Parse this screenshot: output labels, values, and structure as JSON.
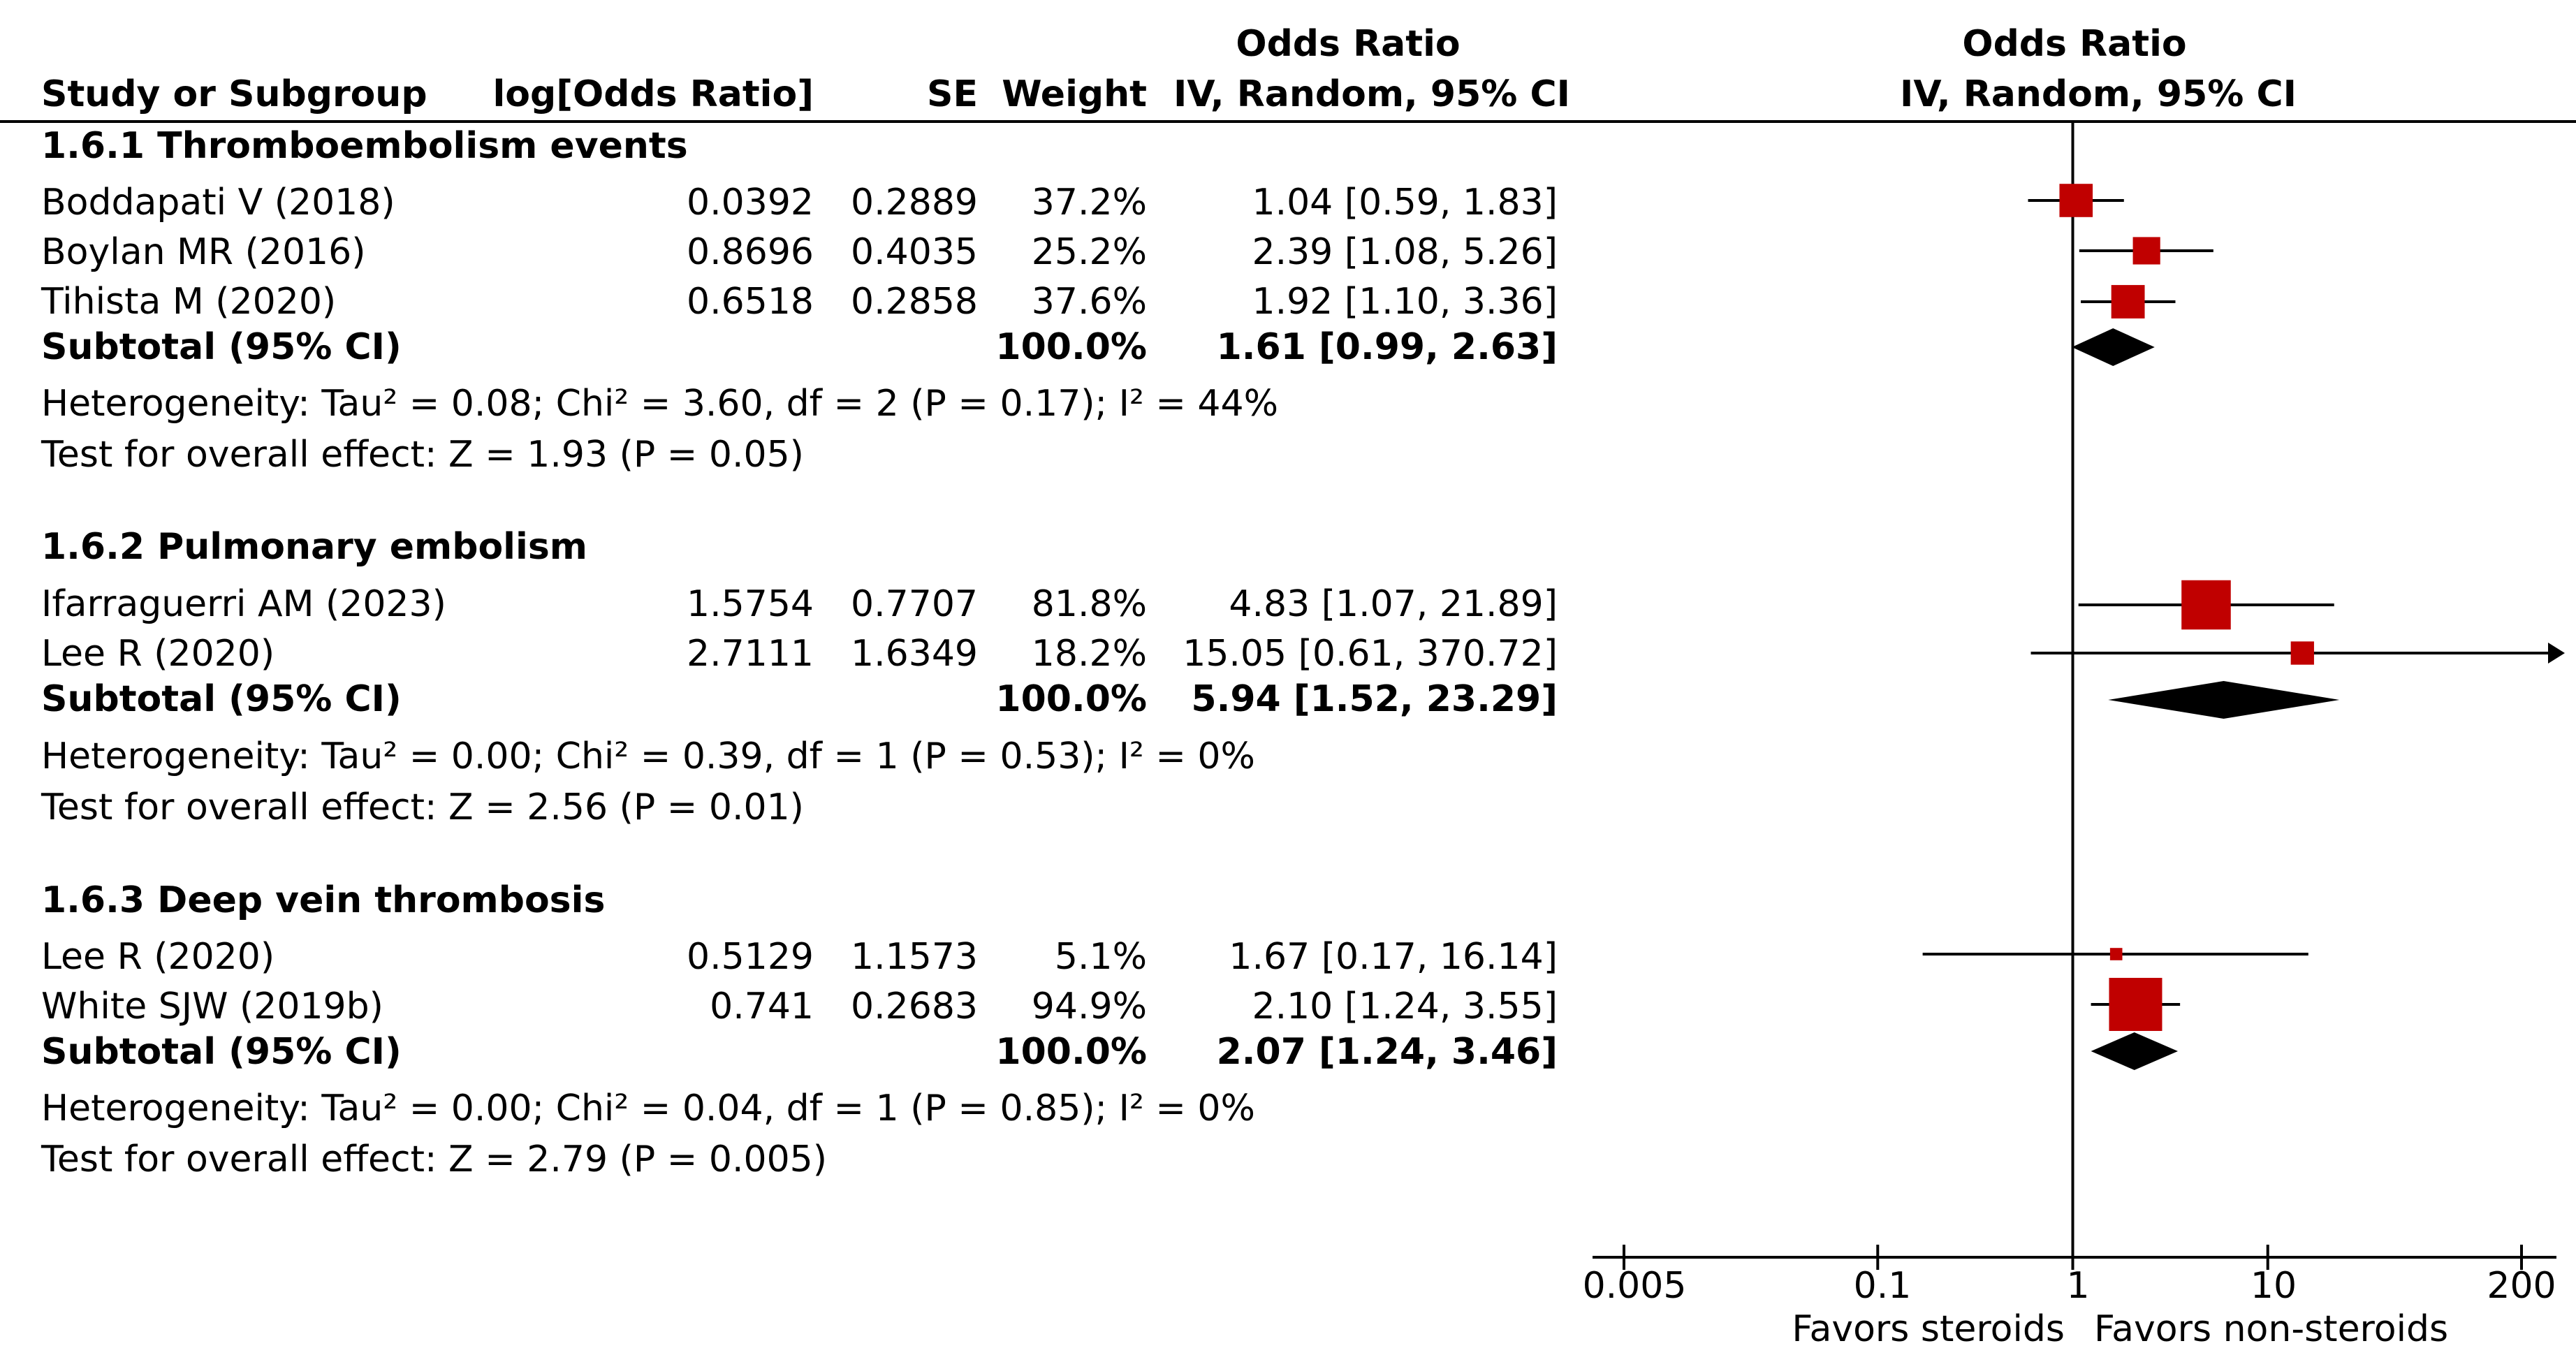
{
  "header": {
    "study": "Study or Subgroup",
    "log_or": "log[Odds Ratio]",
    "se": "SE",
    "weight": "Weight",
    "or_top": "Odds Ratio",
    "or_method": "IV, Random, 95% CI",
    "plot_top": "Odds Ratio",
    "plot_method": "IV, Random, 95% CI"
  },
  "subgroups": [
    {
      "title": "1.6.1 Thromboembolism events",
      "studies": [
        {
          "name": "Boddapati V (2018)",
          "log_or": "0.0392",
          "se": "0.2889",
          "weight": "37.2%",
          "ci": "1.04 [0.59, 1.83]"
        },
        {
          "name": "Boylan MR (2016)",
          "log_or": "0.8696",
          "se": "0.4035",
          "weight": "25.2%",
          "ci": "2.39 [1.08, 5.26]"
        },
        {
          "name": "Tihista M (2020)",
          "log_or": "0.6518",
          "se": "0.2858",
          "weight": "37.6%",
          "ci": "1.92 [1.10, 3.36]"
        }
      ],
      "subtotal": {
        "label": "Subtotal (95% CI)",
        "weight": "100.0%",
        "ci": "1.61 [0.99, 2.63]"
      },
      "heterogeneity": "Heterogeneity: Tau² = 0.08; Chi² = 3.60, df = 2 (P = 0.17); I² = 44%",
      "overall": "Test for overall effect: Z = 1.93 (P = 0.05)"
    },
    {
      "title": "1.6.2 Pulmonary embolism",
      "studies": [
        {
          "name": "Ifarraguerri AM (2023)",
          "log_or": "1.5754",
          "se": "0.7707",
          "weight": "81.8%",
          "ci": "4.83 [1.07, 21.89]"
        },
        {
          "name": "Lee R (2020)",
          "log_or": "2.7111",
          "se": "1.6349",
          "weight": "18.2%",
          "ci": "15.05 [0.61, 370.72]"
        }
      ],
      "subtotal": {
        "label": "Subtotal (95% CI)",
        "weight": "100.0%",
        "ci": "5.94 [1.52, 23.29]"
      },
      "heterogeneity": "Heterogeneity: Tau² = 0.00; Chi² = 0.39, df = 1 (P = 0.53); I² = 0%",
      "overall": "Test for overall effect: Z = 2.56 (P = 0.01)"
    },
    {
      "title": "1.6.3 Deep vein thrombosis",
      "studies": [
        {
          "name": "Lee R (2020)",
          "log_or": "0.5129",
          "se": "1.1573",
          "weight": "5.1%",
          "ci": "1.67 [0.17, 16.14]"
        },
        {
          "name": "White SJW (2019b)",
          "log_or": "0.741",
          "se": "0.2683",
          "weight": "94.9%",
          "ci": "2.10 [1.24, 3.55]"
        }
      ],
      "subtotal": {
        "label": "Subtotal (95% CI)",
        "weight": "100.0%",
        "ci": "2.07 [1.24, 3.46]"
      },
      "heterogeneity": "Heterogeneity: Tau² = 0.00; Chi² = 0.04, df = 1 (P = 0.85); I² = 0%",
      "overall": "Test for overall effect: Z = 2.79 (P = 0.005)"
    }
  ],
  "axis": {
    "ticks": [
      "0.005",
      "0.1",
      "1",
      "10",
      "200"
    ],
    "favors_left": "Favors steroids",
    "favors_right": "Favors non-steroids"
  },
  "colors": {
    "marker": "#c00000",
    "line": "#000000"
  },
  "chart_data": {
    "type": "forest",
    "title": "Odds Ratio IV, Random, 95% CI",
    "scale": "log",
    "xlim": [
      0.005,
      200
    ],
    "ticks": [
      0.005,
      0.1,
      1,
      10,
      200
    ],
    "null_line": 1,
    "series": [
      {
        "name": "Boddapati V (2018)",
        "or": 1.04,
        "lo": 0.59,
        "hi": 1.83,
        "weight": 37.2
      },
      {
        "name": "Boylan MR (2016)",
        "or": 2.39,
        "lo": 1.08,
        "hi": 5.26,
        "weight": 25.2
      },
      {
        "name": "Tihista M (2020)",
        "or": 1.92,
        "lo": 1.1,
        "hi": 3.36,
        "weight": 37.6
      },
      {
        "name": "Subtotal 1.6.1",
        "or": 1.61,
        "lo": 0.99,
        "hi": 2.63,
        "subtotal": true
      },
      {
        "name": "Ifarraguerri AM (2023)",
        "or": 4.83,
        "lo": 1.07,
        "hi": 21.89,
        "weight": 81.8
      },
      {
        "name": "Lee R (2020)",
        "or": 15.05,
        "lo": 0.61,
        "hi": 370.72,
        "weight": 18.2
      },
      {
        "name": "Subtotal 1.6.2",
        "or": 5.94,
        "lo": 1.52,
        "hi": 23.29,
        "subtotal": true
      },
      {
        "name": "Lee R (2020)",
        "or": 1.67,
        "lo": 0.17,
        "hi": 16.14,
        "weight": 5.1
      },
      {
        "name": "White SJW (2019b)",
        "or": 2.1,
        "lo": 1.24,
        "hi": 3.55,
        "weight": 94.9
      },
      {
        "name": "Subtotal 1.6.3",
        "or": 2.07,
        "lo": 1.24,
        "hi": 3.46,
        "subtotal": true
      }
    ],
    "xlabel_left": "Favors steroids",
    "xlabel_right": "Favors non-steroids"
  }
}
